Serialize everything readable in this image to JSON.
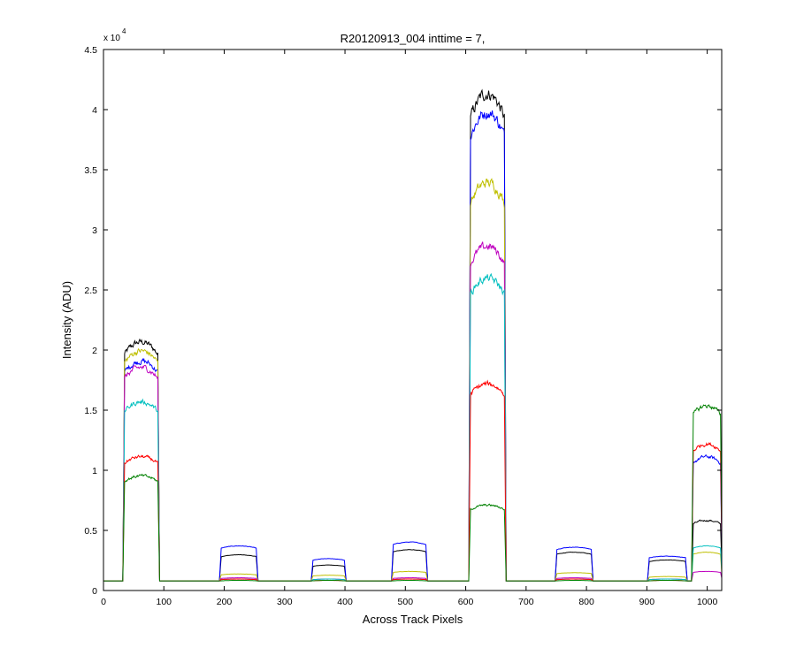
{
  "chart_data": {
    "type": "line",
    "title": "R20120913_004 inttime = 7,",
    "xlabel": "Across Track Pixels",
    "ylabel": "Intensity (ADU)",
    "y_exponent_base": "x 10",
    "y_exponent_power": "4",
    "xlim": [
      0,
      1024
    ],
    "ylim": [
      0,
      4.5
    ],
    "y_scale_factor": 10000,
    "x_ticks": [
      0,
      100,
      200,
      300,
      400,
      500,
      600,
      700,
      800,
      900,
      1000
    ],
    "y_ticks": [
      0,
      0.5,
      1,
      1.5,
      2,
      2.5,
      3,
      3.5,
      4,
      4.5
    ],
    "x_tick_labels": [
      "0",
      "100",
      "200",
      "300",
      "400",
      "500",
      "600",
      "700",
      "800",
      "900",
      "1000"
    ],
    "y_tick_labels": [
      "0",
      "0.5",
      "1",
      "1.5",
      "2",
      "2.5",
      "3",
      "3.5",
      "4",
      "4.5"
    ],
    "grid": false,
    "baseline": 0.08,
    "plateaus": [
      {
        "start": 33,
        "end": 92
      },
      {
        "start": 193,
        "end": 255
      },
      {
        "start": 345,
        "end": 401
      },
      {
        "start": 478,
        "end": 536
      },
      {
        "start": 606,
        "end": 666
      },
      {
        "start": 749,
        "end": 810
      },
      {
        "start": 902,
        "end": 966
      },
      {
        "start": 975,
        "end": 1024
      }
    ],
    "series": [
      {
        "color": "#000000",
        "plateau_values": [
          1.95,
          0.28,
          0.2,
          0.32,
          3.9,
          0.3,
          0.24,
          0.55
        ]
      },
      {
        "color": "#0000ff",
        "plateau_values": [
          1.8,
          0.35,
          0.25,
          0.38,
          3.75,
          0.34,
          0.27,
          1.05
        ]
      },
      {
        "color": "#bfbf00",
        "plateau_values": [
          1.88,
          0.13,
          0.12,
          0.15,
          3.2,
          0.14,
          0.11,
          0.3
        ]
      },
      {
        "color": "#bf00bf",
        "plateau_values": [
          1.75,
          0.1,
          0.09,
          0.1,
          2.7,
          0.1,
          0.09,
          0.15
        ]
      },
      {
        "color": "#00bfbf",
        "plateau_values": [
          1.48,
          0.09,
          0.09,
          0.09,
          2.45,
          0.09,
          0.09,
          0.35
        ]
      },
      {
        "color": "#ff0000",
        "plateau_values": [
          1.05,
          0.09,
          0.08,
          0.09,
          1.62,
          0.09,
          0.08,
          1.15
        ]
      },
      {
        "color": "#008000",
        "plateau_values": [
          0.9,
          0.08,
          0.08,
          0.08,
          0.67,
          0.08,
          0.08,
          1.45
        ]
      }
    ]
  }
}
